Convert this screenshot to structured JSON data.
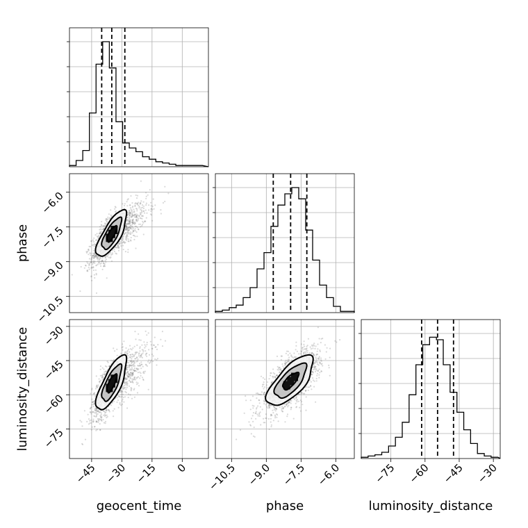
{
  "chart_data": {
    "type": "corner",
    "parameters": [
      "geocent_time",
      "phase",
      "luminosity_distance"
    ],
    "axis_labels": {
      "x": [
        "geocent_time",
        "phase",
        "luminosity_distance"
      ],
      "y": [
        "",
        "phase",
        "luminosity_distance"
      ]
    },
    "ranges": {
      "geocent_time": [
        -56,
        13
      ],
      "phase": [
        -11.2,
        -5.2
      ],
      "luminosity_distance": [
        -88,
        -27
      ]
    },
    "ticks": {
      "geocent_time": [
        -45,
        -30,
        -15,
        0
      ],
      "phase": [
        -10.5,
        -9.0,
        -7.5,
        -6.0
      ],
      "luminosity_distance": [
        -75,
        -60,
        -45,
        -30
      ]
    },
    "tick_labels": {
      "geocent_time": [
        "−45",
        "−30",
        "−15",
        "0"
      ],
      "phase": [
        "−10.5",
        "−9.0",
        "−7.5",
        "−6.0"
      ],
      "luminosity_distance": [
        "−75",
        "−60",
        "−45",
        "−30"
      ]
    },
    "quantiles": {
      "geocent_time": [
        -40,
        -35,
        -28.5
      ],
      "phase": [
        -8.7,
        -7.95,
        -7.25
      ],
      "luminosity_distance": [
        -61.5,
        -54.5,
        -47.5
      ]
    },
    "histograms": {
      "geocent_time": {
        "edges": [
          -56,
          -52.7,
          -49.4,
          -46.1,
          -42.8,
          -39.5,
          -36.2,
          -32.9,
          -29.6,
          -26.3,
          -23.0,
          -19.7,
          -16.4,
          -13.1,
          -9.8,
          -6.5,
          -3.2,
          0.1,
          3.4,
          6.7,
          10
        ],
        "counts": [
          0.01,
          0.05,
          0.13,
          0.43,
          0.82,
          1.0,
          0.79,
          0.36,
          0.19,
          0.15,
          0.12,
          0.08,
          0.06,
          0.04,
          0.03,
          0.02,
          0.01,
          0.01,
          0.01,
          0.01
        ]
      },
      "phase": {
        "edges": [
          -11.2,
          -10.9,
          -10.6,
          -10.3,
          -10.0,
          -9.7,
          -9.4,
          -9.1,
          -8.8,
          -8.5,
          -8.2,
          -7.9,
          -7.6,
          -7.3,
          -7.0,
          -6.7,
          -6.4,
          -6.1,
          -5.8,
          -5.5,
          -5.2
        ],
        "counts": [
          0.01,
          0.02,
          0.04,
          0.06,
          0.12,
          0.2,
          0.35,
          0.48,
          0.69,
          0.86,
          0.95,
          1.0,
          0.91,
          0.66,
          0.42,
          0.22,
          0.12,
          0.05,
          0.01,
          0.01
        ]
      },
      "luminosity_distance": {
        "edges": [
          -88,
          -85,
          -82,
          -79,
          -76,
          -73,
          -70,
          -67,
          -64,
          -61,
          -58,
          -55,
          -52,
          -49,
          -46,
          -43,
          -40,
          -37,
          -34,
          -31,
          -28
        ],
        "counts": [
          0.01,
          0.02,
          0.03,
          0.05,
          0.1,
          0.17,
          0.29,
          0.51,
          0.75,
          0.91,
          0.97,
          0.95,
          0.75,
          0.53,
          0.37,
          0.23,
          0.12,
          0.04,
          0.02,
          0.01
        ]
      }
    },
    "contours": {
      "phase_vs_geocent_time": {
        "center": [
          -35,
          -7.8
        ],
        "samples_per_axis_sd": [
          7,
          0.9
        ],
        "correlation": 0.75,
        "levels": [
          {
            "sx": 7.5,
            "sy": 1.0
          },
          {
            "sx": 4.8,
            "sy": 0.68
          },
          {
            "sx": 2.4,
            "sy": 0.34
          }
        ]
      },
      "luminosity_distance_vs_geocent_time": {
        "center": [
          -35,
          -55
        ],
        "correlation": 0.75,
        "levels": [
          {
            "sx": 7.5,
            "sy": 12
          },
          {
            "sx": 4.8,
            "sy": 8
          },
          {
            "sx": 2.4,
            "sy": 4
          }
        ]
      },
      "luminosity_distance_vs_phase": {
        "center": [
          -7.95,
          -54
        ],
        "correlation": 0.7,
        "levels": [
          {
            "sx": 1.0,
            "sy": 11
          },
          {
            "sx": 0.68,
            "sy": 7.5
          },
          {
            "sx": 0.34,
            "sy": 3.7
          }
        ]
      }
    },
    "grid": true,
    "legend": "none"
  }
}
